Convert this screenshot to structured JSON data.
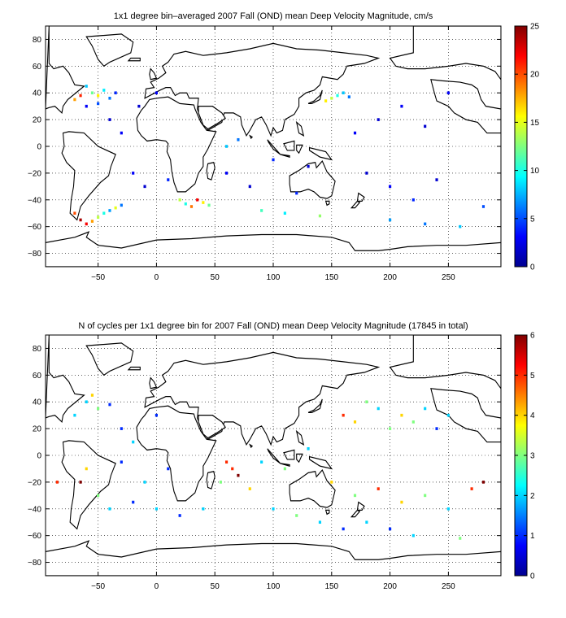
{
  "chart_data": [
    {
      "type": "heatmap",
      "title": "1x1 degree bin–averaged 2007 Fall (OND) mean Deep Velocity Magnitude, cm/s",
      "xlabel": "",
      "ylabel": "",
      "xlim": [
        -95,
        295
      ],
      "ylim": [
        -90,
        90
      ],
      "xticks": [
        -50,
        0,
        50,
        100,
        150,
        200,
        250
      ],
      "xtick_labels": [
        "−50",
        "0",
        "50",
        "100",
        "150",
        "200",
        "250"
      ],
      "yticks": [
        -80,
        -60,
        -40,
        -20,
        0,
        20,
        40,
        60,
        80
      ],
      "ytick_labels": [
        "−80",
        "−60",
        "−40",
        "−20",
        "0",
        "20",
        "40",
        "60",
        "80"
      ],
      "grid": true,
      "grid_style": "dotted",
      "colorbar": {
        "min": 0,
        "max": 25,
        "ticks": [
          0,
          5,
          10,
          15,
          20,
          25
        ],
        "tick_labels": [
          "0",
          "5",
          "10",
          "15",
          "20",
          "25"
        ],
        "colormap": "jet"
      },
      "bins": [
        [
          -60,
          45,
          8
        ],
        [
          -55,
          40,
          12
        ],
        [
          -50,
          38,
          16
        ],
        [
          -45,
          42,
          9
        ],
        [
          -40,
          36,
          6
        ],
        [
          -35,
          40,
          4
        ],
        [
          -60,
          30,
          3
        ],
        [
          -50,
          32,
          5
        ],
        [
          -70,
          35,
          18
        ],
        [
          -65,
          38,
          21
        ],
        [
          -70,
          -50,
          20
        ],
        [
          -65,
          -55,
          24
        ],
        [
          -60,
          -58,
          22
        ],
        [
          -55,
          -56,
          18
        ],
        [
          -50,
          -53,
          14
        ],
        [
          -45,
          -50,
          10
        ],
        [
          -40,
          -48,
          7
        ],
        [
          -35,
          -46,
          15
        ],
        [
          -30,
          -44,
          6
        ],
        [
          30,
          -45,
          19
        ],
        [
          35,
          -40,
          22
        ],
        [
          40,
          -42,
          16
        ],
        [
          20,
          -40,
          14
        ],
        [
          25,
          -43,
          10
        ],
        [
          45,
          -44,
          12
        ],
        [
          150,
          36,
          14
        ],
        [
          155,
          38,
          10
        ],
        [
          160,
          40,
          8
        ],
        [
          145,
          34,
          16
        ],
        [
          165,
          37,
          6
        ],
        [
          -20,
          -20,
          3
        ],
        [
          -10,
          -30,
          2
        ],
        [
          10,
          -25,
          4
        ],
        [
          60,
          -20,
          3
        ],
        [
          80,
          -30,
          2
        ],
        [
          120,
          -35,
          4
        ],
        [
          180,
          -20,
          2
        ],
        [
          200,
          -30,
          3
        ],
        [
          220,
          -40,
          4
        ],
        [
          240,
          -25,
          2
        ],
        [
          170,
          10,
          3
        ],
        [
          190,
          20,
          2
        ],
        [
          210,
          30,
          3
        ],
        [
          230,
          15,
          2
        ],
        [
          250,
          40,
          3
        ],
        [
          130,
          -15,
          2
        ],
        [
          100,
          -10,
          4
        ],
        [
          70,
          5,
          6
        ],
        [
          60,
          0,
          8
        ],
        [
          -30,
          10,
          3
        ],
        [
          -15,
          30,
          2
        ],
        [
          0,
          40,
          3
        ],
        [
          -40,
          20,
          2
        ],
        [
          200,
          -55,
          7
        ],
        [
          230,
          -58,
          6
        ],
        [
          260,
          -60,
          8
        ],
        [
          110,
          -50,
          9
        ],
        [
          90,
          -48,
          11
        ],
        [
          140,
          -52,
          13
        ],
        [
          280,
          -45,
          5
        ]
      ]
    },
    {
      "type": "heatmap",
      "title": "N of cycles per 1x1 degree bin for 2007 Fall (OND) mean Deep Velocity Magnitude (17845 in total)",
      "xlabel": "",
      "ylabel": "",
      "xlim": [
        -95,
        295
      ],
      "ylim": [
        -90,
        90
      ],
      "xticks": [
        -50,
        0,
        50,
        100,
        150,
        200,
        250
      ],
      "xtick_labels": [
        "−50",
        "0",
        "50",
        "100",
        "150",
        "200",
        "250"
      ],
      "yticks": [
        -80,
        -60,
        -40,
        -20,
        0,
        20,
        40,
        60,
        80
      ],
      "ytick_labels": [
        "−80",
        "−60",
        "−40",
        "−20",
        "0",
        "20",
        "40",
        "60",
        "80"
      ],
      "grid": true,
      "grid_style": "dotted",
      "colorbar": {
        "min": 0,
        "max": 6,
        "ticks": [
          0,
          1,
          2,
          3,
          4,
          5,
          6
        ],
        "tick_labels": [
          "0",
          "1",
          "2",
          "3",
          "4",
          "5",
          "6"
        ],
        "colormap": "jet"
      },
      "bins": [
        [
          -60,
          40,
          2
        ],
        [
          -50,
          35,
          3
        ],
        [
          -40,
          38,
          1
        ],
        [
          -70,
          30,
          2
        ],
        [
          -55,
          45,
          4
        ],
        [
          -30,
          20,
          1
        ],
        [
          -20,
          10,
          2
        ],
        [
          0,
          30,
          1
        ],
        [
          65,
          -10,
          5
        ],
        [
          70,
          -15,
          6
        ],
        [
          60,
          -5,
          5
        ],
        [
          80,
          -25,
          4
        ],
        [
          55,
          -20,
          3
        ],
        [
          -65,
          -20,
          6
        ],
        [
          -85,
          -20,
          5
        ],
        [
          -60,
          -10,
          4
        ],
        [
          -50,
          -30,
          3
        ],
        [
          -40,
          -40,
          2
        ],
        [
          160,
          30,
          5
        ],
        [
          170,
          25,
          4
        ],
        [
          180,
          40,
          3
        ],
        [
          190,
          35,
          2
        ],
        [
          200,
          20,
          3
        ],
        [
          210,
          30,
          4
        ],
        [
          220,
          25,
          3
        ],
        [
          230,
          35,
          2
        ],
        [
          240,
          20,
          1
        ],
        [
          250,
          30,
          2
        ],
        [
          150,
          -20,
          4
        ],
        [
          170,
          -30,
          3
        ],
        [
          190,
          -25,
          5
        ],
        [
          210,
          -35,
          4
        ],
        [
          230,
          -30,
          3
        ],
        [
          250,
          -40,
          2
        ],
        [
          270,
          -25,
          5
        ],
        [
          280,
          -20,
          6
        ],
        [
          100,
          -40,
          2
        ],
        [
          120,
          -45,
          3
        ],
        [
          140,
          -50,
          2
        ],
        [
          160,
          -55,
          1
        ],
        [
          180,
          -50,
          2
        ],
        [
          200,
          -55,
          1
        ],
        [
          220,
          -60,
          2
        ],
        [
          260,
          -62,
          3
        ],
        [
          40,
          -40,
          2
        ],
        [
          20,
          -45,
          1
        ],
        [
          0,
          -40,
          2
        ],
        [
          -20,
          -35,
          1
        ],
        [
          -10,
          -20,
          2
        ],
        [
          10,
          -10,
          1
        ],
        [
          90,
          -5,
          2
        ],
        [
          110,
          -10,
          3
        ],
        [
          130,
          5,
          2
        ],
        [
          -30,
          -5,
          1
        ]
      ]
    }
  ]
}
